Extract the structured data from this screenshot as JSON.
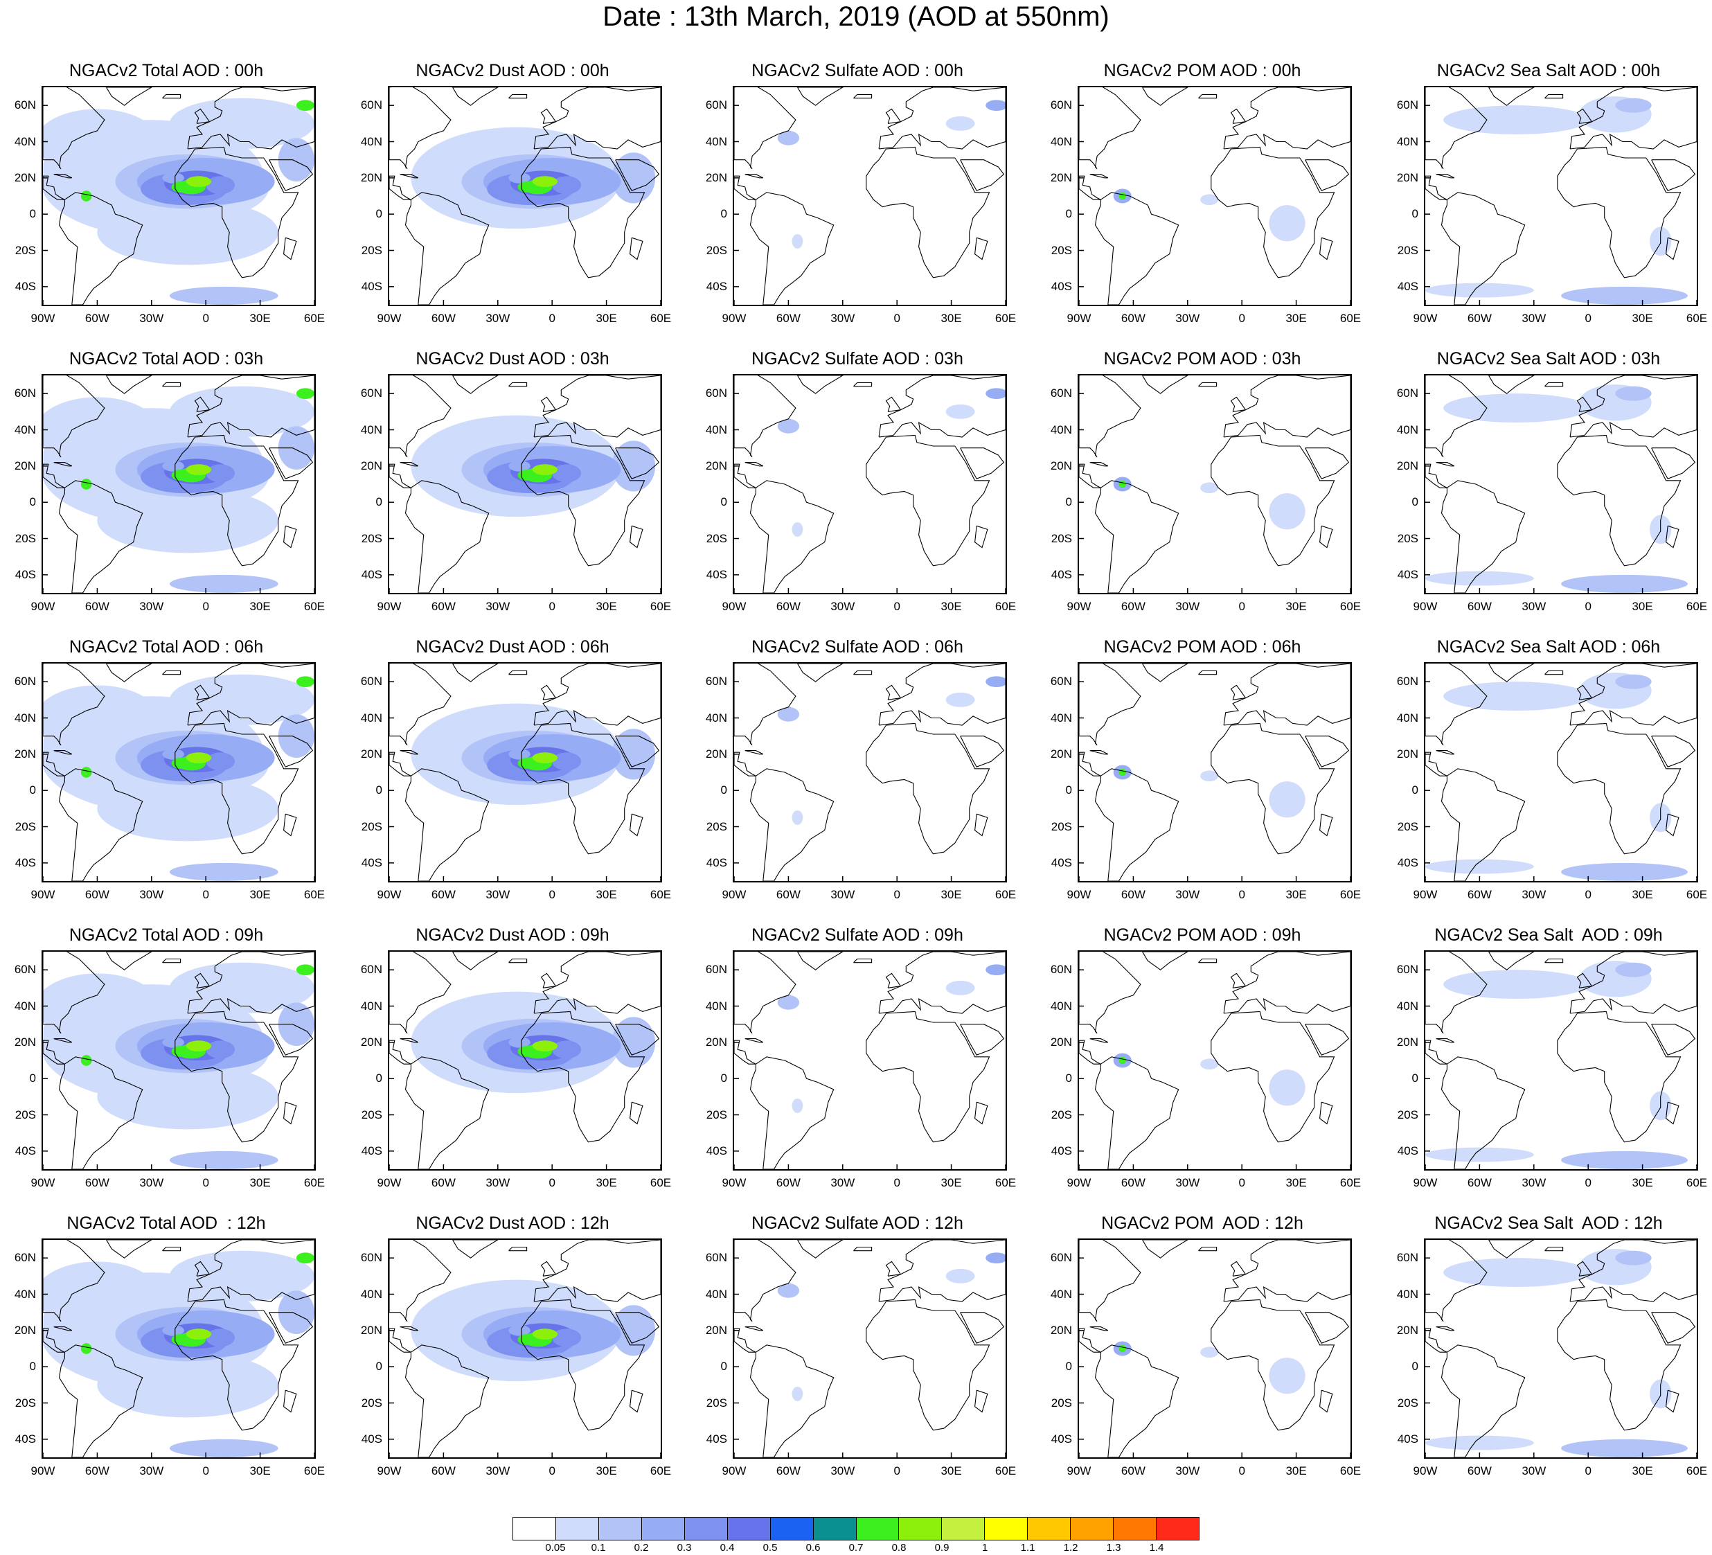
{
  "figure_title": "Date : 13th March, 2019 (AOD at 550nm)",
  "lat_labels": [
    "60N",
    "40N",
    "20N",
    "0",
    "20S",
    "40S"
  ],
  "lon_labels": [
    "90W",
    "60W",
    "30W",
    "0",
    "30E",
    "60E"
  ],
  "panel_rows": [
    {
      "hour": "00h",
      "titles": [
        "NGACv2 Total AOD : 00h",
        "NGACv2 Dust AOD : 00h",
        "NGACv2 Sulfate AOD : 00h",
        "NGACv2 POM AOD : 00h",
        "NGACv2 Sea Salt AOD : 00h"
      ]
    },
    {
      "hour": "03h",
      "titles": [
        "NGACv2 Total AOD : 03h",
        "NGACv2 Dust AOD : 03h",
        "NGACv2 Sulfate AOD : 03h",
        "NGACv2 POM AOD : 03h",
        "NGACv2 Sea Salt AOD : 03h"
      ]
    },
    {
      "hour": "06h",
      "titles": [
        "NGACv2 Total AOD : 06h",
        "NGACv2 Dust AOD : 06h",
        "NGACv2 Sulfate AOD : 06h",
        "NGACv2 POM AOD : 06h",
        "NGACv2 Sea Salt AOD : 06h"
      ]
    },
    {
      "hour": "09h",
      "titles": [
        "NGACv2 Total AOD : 09h",
        "NGACv2 Dust AOD : 09h",
        "NGACv2 Sulfate AOD : 09h",
        "NGACv2 POM AOD : 09h",
        "NGACv2 Sea Salt  AOD : 09h"
      ]
    },
    {
      "hour": "12h",
      "titles": [
        "NGACv2 Total AOD  : 12h",
        "NGACv2 Dust AOD : 12h",
        "NGACv2 Sulfate AOD : 12h",
        "NGACv2 POM  AOD : 12h",
        "NGACv2 Sea Salt  AOD : 12h"
      ]
    }
  ],
  "panel_kinds": [
    "total",
    "dust",
    "sulfate",
    "pom",
    "seasalt"
  ],
  "colorbar": {
    "labels": [
      "0.05",
      "0.1",
      "0.2",
      "0.3",
      "0.4",
      "0.5",
      "0.6",
      "0.7",
      "0.8",
      "0.9",
      "1",
      "1.1",
      "1.2",
      "1.3",
      "1.4"
    ],
    "colors": [
      "#ffffff",
      "#d0dcfb",
      "#b2c4f7",
      "#96acf5",
      "#7d92f0",
      "#6673ea",
      "#1a63f2",
      "#0a9090",
      "#3cef1e",
      "#8cf00a",
      "#c4f040",
      "#ffff00",
      "#ffc800",
      "#ffa200",
      "#ff7800",
      "#ff2a1a"
    ]
  }
}
